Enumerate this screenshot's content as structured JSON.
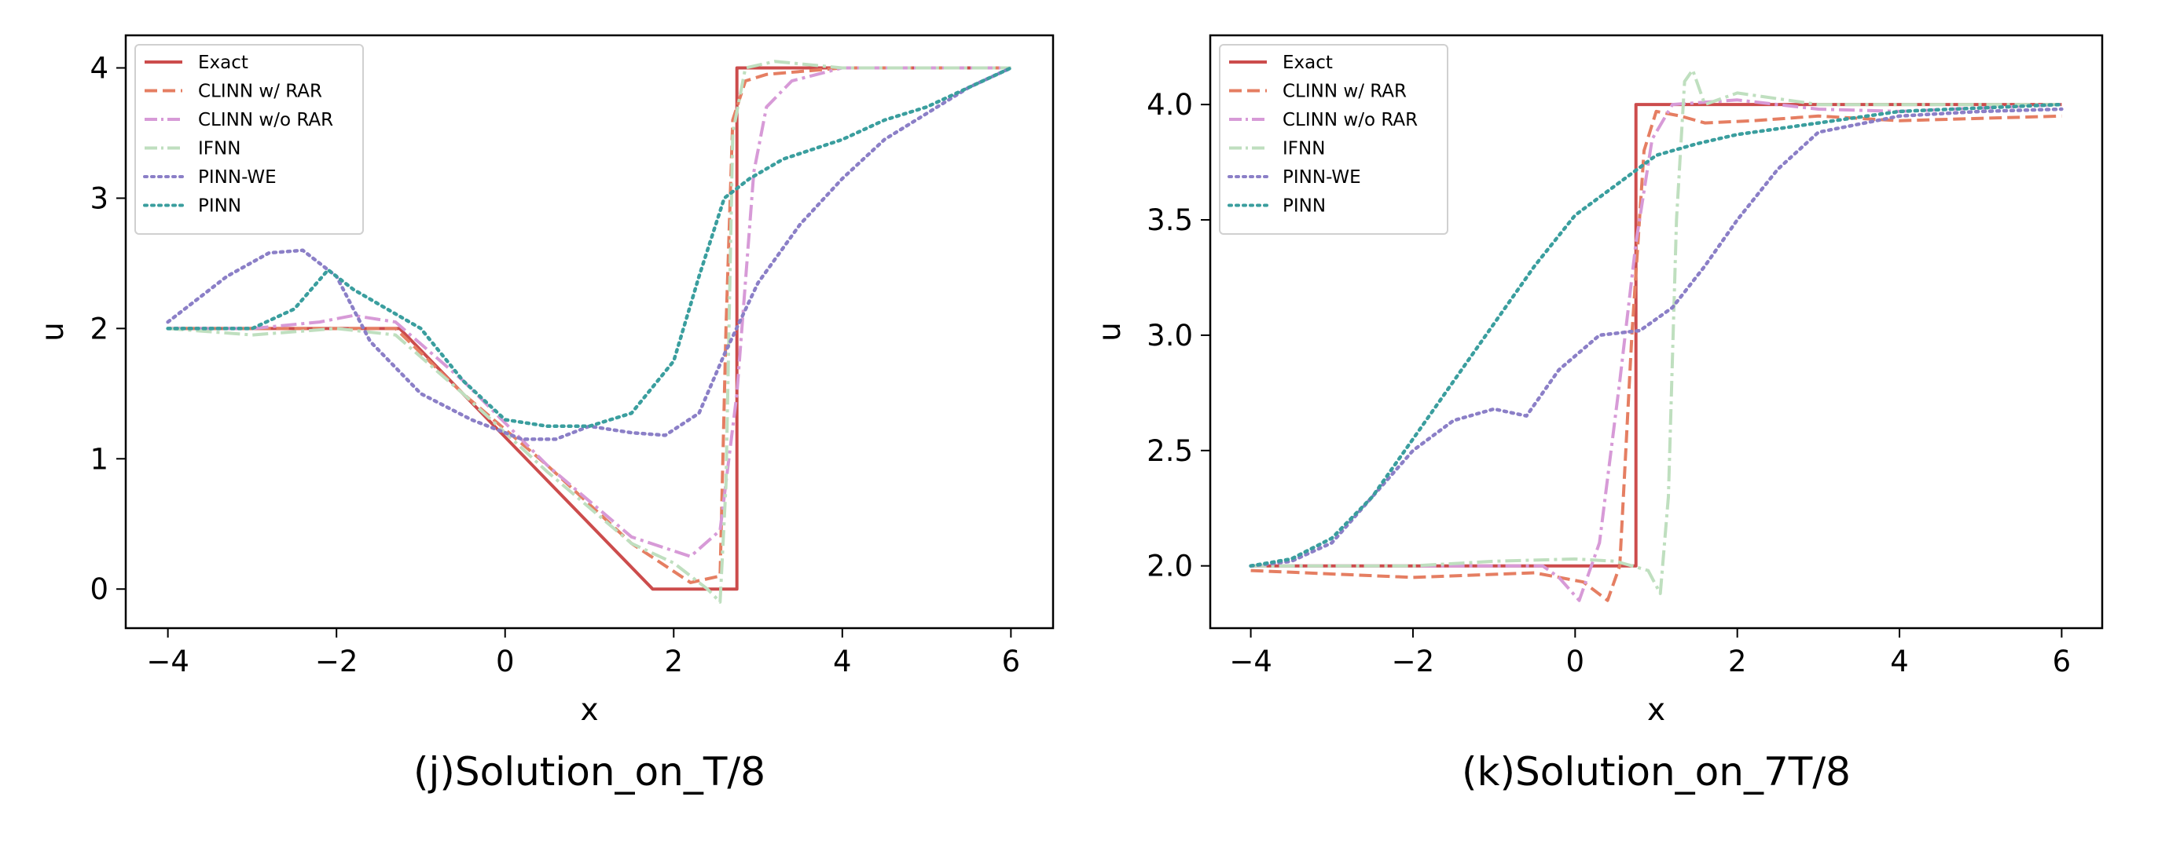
{
  "figure": {
    "colors": {
      "Exact": "#cc4c4c",
      "CLINN w/ RAR": "#e57e62",
      "CLINN w/o RAR": "#d79ad7",
      "IFNN": "#bfdfbf",
      "PINN-WE": "#8b7fc7",
      "PINN": "#3a9e9e"
    }
  },
  "chart_data": [
    {
      "type": "line",
      "caption": "(j)Solution_on_T/8",
      "xlabel": "x",
      "ylabel": "u",
      "xlim": [
        -4.5,
        6.5
      ],
      "ylim": [
        -0.3,
        4.25
      ],
      "xticks": [
        -4,
        -2,
        0,
        2,
        4,
        6
      ],
      "xtick_labels": [
        "−4",
        "−2",
        "0",
        "2",
        "4",
        "6"
      ],
      "yticks": [
        0,
        1,
        2,
        3,
        4
      ],
      "ytick_labels": [
        "0",
        "1",
        "2",
        "3",
        "4"
      ],
      "legend_position": "top-left",
      "series": [
        {
          "name": "Exact",
          "style": "solid",
          "points": [
            [
              -4,
              2
            ],
            [
              -1.25,
              2
            ],
            [
              1.75,
              0
            ],
            [
              2.75,
              0
            ],
            [
              2.75,
              4
            ],
            [
              6,
              4
            ]
          ]
        },
        {
          "name": "CLINN w/ RAR",
          "style": "dashed",
          "points": [
            [
              -4,
              2
            ],
            [
              -1.3,
              2
            ],
            [
              -0.5,
              1.5
            ],
            [
              0.5,
              0.95
            ],
            [
              1.5,
              0.35
            ],
            [
              2.2,
              0.05
            ],
            [
              2.55,
              0.1
            ],
            [
              2.62,
              2
            ],
            [
              2.7,
              3.6
            ],
            [
              2.85,
              3.9
            ],
            [
              3.1,
              3.95
            ],
            [
              4,
              4
            ],
            [
              6,
              4
            ]
          ]
        },
        {
          "name": "CLINN w/o RAR",
          "style": "dashdot",
          "points": [
            [
              -4,
              2
            ],
            [
              -3,
              2
            ],
            [
              -2.2,
              2.05
            ],
            [
              -1.8,
              2.1
            ],
            [
              -1.3,
              2.05
            ],
            [
              -0.5,
              1.6
            ],
            [
              0.5,
              0.95
            ],
            [
              1.5,
              0.4
            ],
            [
              2.2,
              0.25
            ],
            [
              2.55,
              0.45
            ],
            [
              2.75,
              1.5
            ],
            [
              2.95,
              3.2
            ],
            [
              3.1,
              3.7
            ],
            [
              3.4,
              3.9
            ],
            [
              4,
              4
            ],
            [
              6,
              4
            ]
          ]
        },
        {
          "name": "IFNN",
          "style": "dashdot",
          "points": [
            [
              -4,
              2
            ],
            [
              -3,
              1.95
            ],
            [
              -2,
              2
            ],
            [
              -1.3,
              1.95
            ],
            [
              -0.5,
              1.5
            ],
            [
              0.5,
              0.9
            ],
            [
              1.5,
              0.35
            ],
            [
              2.0,
              0.2
            ],
            [
              2.4,
              0.0
            ],
            [
              2.55,
              -0.1
            ],
            [
              2.62,
              0.8
            ],
            [
              2.7,
              3.5
            ],
            [
              2.85,
              4.0
            ],
            [
              3.2,
              4.05
            ],
            [
              4,
              4
            ],
            [
              6,
              4
            ]
          ]
        },
        {
          "name": "PINN-WE",
          "style": "dotted",
          "points": [
            [
              -4,
              2.05
            ],
            [
              -3.3,
              2.4
            ],
            [
              -2.8,
              2.58
            ],
            [
              -2.4,
              2.6
            ],
            [
              -2.0,
              2.4
            ],
            [
              -1.6,
              1.9
            ],
            [
              -1.0,
              1.5
            ],
            [
              -0.4,
              1.3
            ],
            [
              0.2,
              1.15
            ],
            [
              0.6,
              1.15
            ],
            [
              1.0,
              1.25
            ],
            [
              1.5,
              1.2
            ],
            [
              1.9,
              1.18
            ],
            [
              2.3,
              1.35
            ],
            [
              2.6,
              1.8
            ],
            [
              3.0,
              2.35
            ],
            [
              3.5,
              2.8
            ],
            [
              4,
              3.15
            ],
            [
              4.5,
              3.45
            ],
            [
              5,
              3.65
            ],
            [
              5.5,
              3.85
            ],
            [
              6,
              4
            ]
          ]
        },
        {
          "name": "PINN",
          "style": "dotted",
          "points": [
            [
              -4,
              2
            ],
            [
              -3,
              2.0
            ],
            [
              -2.5,
              2.15
            ],
            [
              -2.1,
              2.45
            ],
            [
              -1.8,
              2.3
            ],
            [
              -1.4,
              2.15
            ],
            [
              -1.0,
              2.0
            ],
            [
              -0.5,
              1.6
            ],
            [
              0,
              1.3
            ],
            [
              0.5,
              1.25
            ],
            [
              1.0,
              1.25
            ],
            [
              1.5,
              1.35
            ],
            [
              2.0,
              1.75
            ],
            [
              2.3,
              2.4
            ],
            [
              2.6,
              3.0
            ],
            [
              2.9,
              3.15
            ],
            [
              3.3,
              3.3
            ],
            [
              4,
              3.45
            ],
            [
              4.5,
              3.6
            ],
            [
              5,
              3.7
            ],
            [
              5.5,
              3.85
            ],
            [
              6,
              4
            ]
          ]
        }
      ]
    },
    {
      "type": "line",
      "caption": "(k)Solution_on_7T/8",
      "xlabel": "x",
      "ylabel": "u",
      "xlim": [
        -4.5,
        6.5
      ],
      "ylim": [
        1.73,
        4.3
      ],
      "xticks": [
        -4,
        -2,
        0,
        2,
        4,
        6
      ],
      "xtick_labels": [
        "−4",
        "−2",
        "0",
        "2",
        "4",
        "6"
      ],
      "yticks": [
        2.0,
        2.5,
        3.0,
        3.5,
        4.0
      ],
      "ytick_labels": [
        "2.0",
        "2.5",
        "3.0",
        "3.5",
        "4.0"
      ],
      "legend_position": "top-left",
      "series": [
        {
          "name": "Exact",
          "style": "solid",
          "points": [
            [
              -4,
              2
            ],
            [
              0.75,
              2
            ],
            [
              0.75,
              4
            ],
            [
              6,
              4
            ]
          ]
        },
        {
          "name": "CLINN w/ RAR",
          "style": "dashed",
          "points": [
            [
              -4,
              1.98
            ],
            [
              -2,
              1.95
            ],
            [
              -0.5,
              1.97
            ],
            [
              0.1,
              1.93
            ],
            [
              0.4,
              1.85
            ],
            [
              0.55,
              2.0
            ],
            [
              0.7,
              3.0
            ],
            [
              0.85,
              3.8
            ],
            [
              1.0,
              3.97
            ],
            [
              1.3,
              3.95
            ],
            [
              1.6,
              3.92
            ],
            [
              2.2,
              3.93
            ],
            [
              3,
              3.95
            ],
            [
              4,
              3.93
            ],
            [
              6,
              3.95
            ]
          ]
        },
        {
          "name": "CLINN w/o RAR",
          "style": "dashdot",
          "points": [
            [
              -4,
              2
            ],
            [
              -1,
              2.0
            ],
            [
              -0.4,
              2.0
            ],
            [
              -0.2,
              1.95
            ],
            [
              0.05,
              1.85
            ],
            [
              0.3,
              2.1
            ],
            [
              0.55,
              2.8
            ],
            [
              0.75,
              3.4
            ],
            [
              0.95,
              3.85
            ],
            [
              1.2,
              4.0
            ],
            [
              2,
              4.02
            ],
            [
              3,
              3.98
            ],
            [
              4,
              3.97
            ],
            [
              6,
              4
            ]
          ]
        },
        {
          "name": "IFNN",
          "style": "dashdot",
          "points": [
            [
              -4,
              2
            ],
            [
              -2,
              2.0
            ],
            [
              -1,
              2.02
            ],
            [
              0,
              2.03
            ],
            [
              0.5,
              2.02
            ],
            [
              0.9,
              1.98
            ],
            [
              1.05,
              1.88
            ],
            [
              1.15,
              2.3
            ],
            [
              1.25,
              3.5
            ],
            [
              1.35,
              4.1
            ],
            [
              1.45,
              4.15
            ],
            [
              1.6,
              4.0
            ],
            [
              2,
              4.05
            ],
            [
              3,
              4.0
            ],
            [
              6,
              4
            ]
          ]
        },
        {
          "name": "PINN-WE",
          "style": "dotted",
          "points": [
            [
              -4,
              2.0
            ],
            [
              -3.5,
              2.02
            ],
            [
              -3,
              2.1
            ],
            [
              -2.5,
              2.3
            ],
            [
              -2,
              2.5
            ],
            [
              -1.5,
              2.63
            ],
            [
              -1,
              2.68
            ],
            [
              -0.6,
              2.65
            ],
            [
              -0.2,
              2.85
            ],
            [
              0.3,
              3.0
            ],
            [
              0.8,
              3.02
            ],
            [
              1.2,
              3.12
            ],
            [
              1.6,
              3.3
            ],
            [
              2,
              3.5
            ],
            [
              2.5,
              3.72
            ],
            [
              3,
              3.88
            ],
            [
              4,
              3.95
            ],
            [
              5,
              3.97
            ],
            [
              6,
              3.98
            ]
          ]
        },
        {
          "name": "PINN",
          "style": "dotted",
          "points": [
            [
              -4,
              2.0
            ],
            [
              -3.5,
              2.03
            ],
            [
              -3,
              2.12
            ],
            [
              -2.5,
              2.3
            ],
            [
              -2,
              2.55
            ],
            [
              -1.5,
              2.8
            ],
            [
              -1,
              3.05
            ],
            [
              -0.5,
              3.3
            ],
            [
              0,
              3.52
            ],
            [
              0.5,
              3.65
            ],
            [
              1,
              3.78
            ],
            [
              1.5,
              3.83
            ],
            [
              2,
              3.87
            ],
            [
              3,
              3.92
            ],
            [
              4,
              3.97
            ],
            [
              6,
              4.0
            ]
          ]
        }
      ]
    }
  ]
}
